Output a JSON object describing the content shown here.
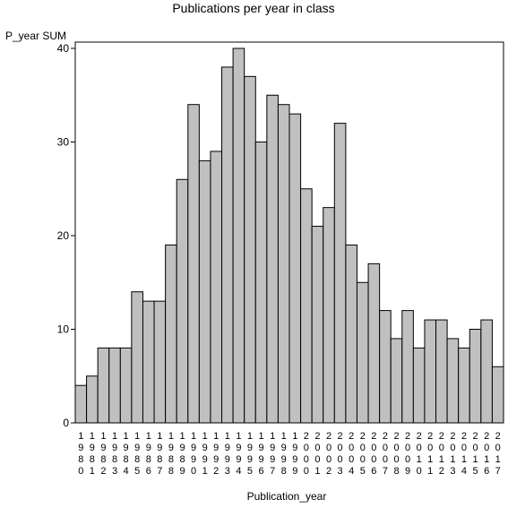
{
  "chart_data": {
    "type": "bar",
    "title": "Publications per year in class",
    "ylabel": "P_year SUM",
    "xlabel": "Publication_year",
    "ylim": [
      0,
      40
    ],
    "yticks": [
      0,
      10,
      20,
      30,
      40
    ],
    "grid": false,
    "bar_color": "#c0c0c0",
    "categories": [
      "1980",
      "1981",
      "1982",
      "1983",
      "1984",
      "1985",
      "1986",
      "1987",
      "1988",
      "1989",
      "1990",
      "1991",
      "1992",
      "1993",
      "1994",
      "1995",
      "1996",
      "1997",
      "1998",
      "1999",
      "2000",
      "2001",
      "2002",
      "2003",
      "2004",
      "2005",
      "2006",
      "2007",
      "2008",
      "2009",
      "2010",
      "2011",
      "2012",
      "2013",
      "2014",
      "2015",
      "2016",
      "2017"
    ],
    "values": [
      4,
      5,
      8,
      8,
      8,
      14,
      13,
      13,
      19,
      26,
      34,
      28,
      29,
      38,
      40,
      37,
      30,
      35,
      34,
      33,
      25,
      21,
      23,
      32,
      19,
      15,
      17,
      12,
      9,
      12,
      8,
      11,
      11,
      9,
      8,
      10,
      11,
      6
    ]
  }
}
